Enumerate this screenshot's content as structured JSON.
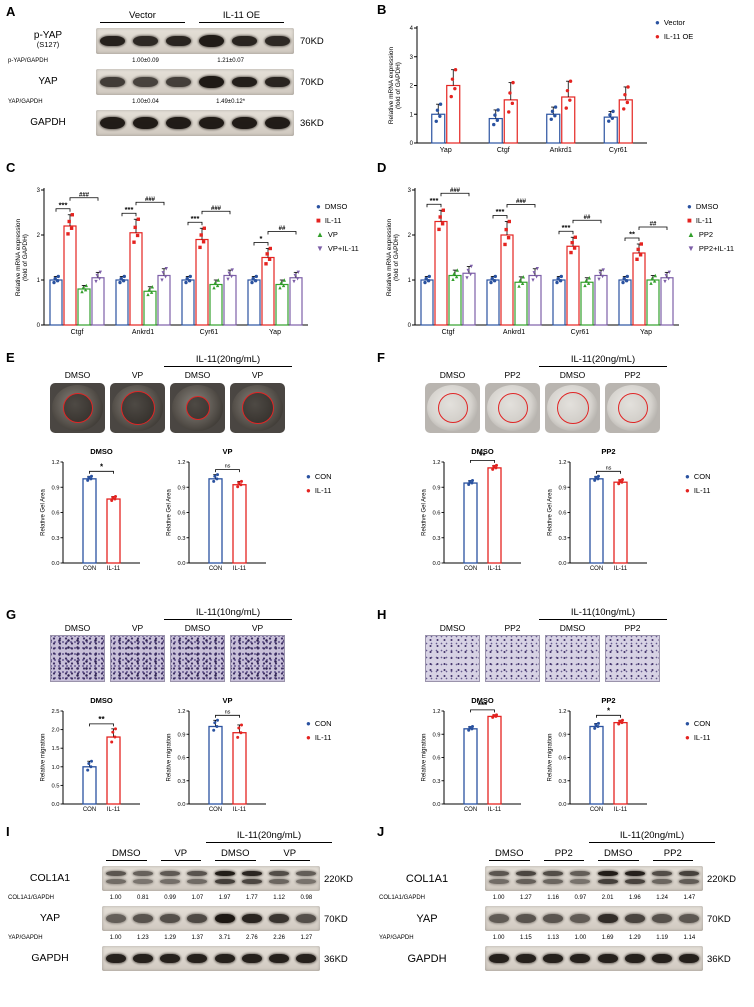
{
  "colors": {
    "blue": "#2a52a0",
    "red": "#e42320",
    "green": "#33a02c",
    "purple": "#7d5fa8",
    "black": "#000000",
    "ring_red": "#e02525"
  },
  "panelA": {
    "letter": "A",
    "groups": [
      "Vector",
      "IL-11 OE"
    ],
    "rows": [
      {
        "label": "p-YAP",
        "sub": "(S127)",
        "kd": "70KD",
        "bands": [
          0.92,
          0.88,
          0.9,
          0.95,
          0.9,
          0.88
        ],
        "quant_label": "p-YAP/GAPDH",
        "quant": [
          "1.00±0.09",
          "1.21±0.07"
        ]
      },
      {
        "label": "YAP",
        "kd": "70KD",
        "bands": [
          0.78,
          0.75,
          0.77,
          0.96,
          0.93,
          0.9
        ],
        "quant_label": "YAP/GAPDH",
        "quant": [
          "1.00±0.04",
          "1.49±0.12*"
        ]
      },
      {
        "label": "GAPDH",
        "kd": "36KD",
        "bands": [
          0.95,
          0.95,
          0.95,
          0.95,
          0.95,
          0.95
        ]
      }
    ]
  },
  "panelB": {
    "letter": "B",
    "chart_data": {
      "type": "bar",
      "ylabel": [
        "Relative mRNA expression",
        "(fold of GAPDH)"
      ],
      "ylim": [
        0,
        4
      ],
      "yticks": [
        0,
        1,
        2,
        3,
        4
      ],
      "grid": false,
      "legend_position": "right",
      "categories": [
        "Yap",
        "Ctgf",
        "Ankrd1",
        "Cyr61"
      ],
      "series": [
        {
          "name": "Vector",
          "color": "blue",
          "marker": "circle",
          "values": [
            1.0,
            0.85,
            1.0,
            0.9
          ],
          "errors": [
            0.35,
            0.3,
            0.25,
            0.2
          ]
        },
        {
          "name": "IL-11 OE",
          "color": "red",
          "marker": "circle",
          "values": [
            2.0,
            1.5,
            1.6,
            1.5
          ],
          "errors": [
            0.55,
            0.6,
            0.55,
            0.45
          ]
        }
      ]
    }
  },
  "panelC": {
    "letter": "C",
    "chart_data": {
      "type": "bar",
      "ylabel": [
        "Relative mRNA expression",
        "(fold of GAPDH)"
      ],
      "ylim": [
        0,
        3
      ],
      "yticks": [
        0,
        1,
        2,
        3
      ],
      "grid": false,
      "legend_position": "right",
      "categories": [
        "Ctgf",
        "Ankrd1",
        "Cyr61",
        "Yap"
      ],
      "series": [
        {
          "name": "DMSO",
          "color": "blue",
          "marker": "circle",
          "values": [
            1.0,
            1.0,
            1.0,
            1.0
          ],
          "errors": [
            0.08,
            0.08,
            0.08,
            0.08
          ]
        },
        {
          "name": "IL-11",
          "color": "red",
          "marker": "square",
          "values": [
            2.2,
            2.05,
            1.9,
            1.5
          ],
          "errors": [
            0.25,
            0.3,
            0.25,
            0.2
          ]
        },
        {
          "name": "VP",
          "color": "green",
          "marker": "triup",
          "values": [
            0.8,
            0.75,
            0.9,
            0.9
          ],
          "errors": [
            0.08,
            0.1,
            0.1,
            0.1
          ]
        },
        {
          "name": "VP+IL-11",
          "color": "purple",
          "marker": "tridown",
          "values": [
            1.05,
            1.1,
            1.1,
            1.05
          ],
          "errors": [
            0.12,
            0.15,
            0.12,
            0.12
          ]
        }
      ],
      "significance": [
        {
          "star": "***",
          "hash": "###"
        },
        {
          "star": "***",
          "hash": "###"
        },
        {
          "star": "***",
          "hash": "###"
        },
        {
          "star": "*",
          "hash": "##"
        }
      ]
    }
  },
  "panelD": {
    "letter": "D",
    "chart_data": {
      "type": "bar",
      "ylabel": [
        "Relative mRNA expression",
        "(fold of GAPDH)"
      ],
      "ylim": [
        0,
        3
      ],
      "yticks": [
        0,
        1,
        2,
        3
      ],
      "grid": false,
      "legend_position": "right",
      "categories": [
        "Ctgf",
        "Ankrd1",
        "Cyr61",
        "Yap"
      ],
      "series": [
        {
          "name": "DMSO",
          "color": "blue",
          "marker": "circle",
          "values": [
            1.0,
            1.0,
            1.0,
            1.0
          ],
          "errors": [
            0.08,
            0.08,
            0.08,
            0.08
          ]
        },
        {
          "name": "IL-11",
          "color": "red",
          "marker": "square",
          "values": [
            2.3,
            2.0,
            1.75,
            1.6
          ],
          "errors": [
            0.25,
            0.3,
            0.2,
            0.2
          ]
        },
        {
          "name": "PP2",
          "color": "green",
          "marker": "triup",
          "values": [
            1.1,
            0.95,
            0.95,
            1.0
          ],
          "errors": [
            0.12,
            0.12,
            0.1,
            0.1
          ]
        },
        {
          "name": "PP2+IL-11",
          "color": "purple",
          "marker": "tridown",
          "values": [
            1.15,
            1.1,
            1.1,
            1.05
          ],
          "errors": [
            0.15,
            0.15,
            0.12,
            0.12
          ]
        }
      ],
      "significance": [
        {
          "star": "***",
          "hash": "###"
        },
        {
          "star": "***",
          "hash": "###"
        },
        {
          "star": "***",
          "hash": "##"
        },
        {
          "star": "**",
          "hash": "##"
        }
      ]
    }
  },
  "panelE": {
    "letter": "E",
    "treatment": "IL-11(20ng/mL)",
    "labels": [
      "DMSO",
      "VP",
      "DMSO",
      "VP"
    ],
    "wells": [
      {
        "ring": 30
      },
      {
        "ring": 34
      },
      {
        "ring": 24
      },
      {
        "ring": 32
      }
    ],
    "legend": [
      {
        "name": "CON",
        "color": "blue",
        "marker": "circle"
      },
      {
        "name": "IL-11",
        "color": "red",
        "marker": "circle"
      }
    ],
    "charts": [
      {
        "type": "bar",
        "title": "DMSO",
        "ylabel": "Relative Gel Area",
        "ylim": [
          0,
          1.2
        ],
        "yticks": [
          0,
          0.3,
          0.6,
          0.9,
          1.2
        ],
        "categories": [
          "CON",
          "IL-11"
        ],
        "colors": [
          "blue",
          "red"
        ],
        "values": [
          1.0,
          0.76
        ],
        "errors": [
          0.03,
          0.03
        ],
        "sig": "*"
      },
      {
        "type": "bar",
        "title": "VP",
        "ylabel": "Relative Gel Area",
        "ylim": [
          0,
          1.2
        ],
        "yticks": [
          0,
          0.3,
          0.6,
          0.9,
          1.2
        ],
        "categories": [
          "CON",
          "IL-11"
        ],
        "colors": [
          "blue",
          "red"
        ],
        "values": [
          1.0,
          0.93
        ],
        "errors": [
          0.05,
          0.04
        ],
        "sig": "ns"
      }
    ]
  },
  "panelF": {
    "letter": "F",
    "treatment": "IL-11(20ng/mL)",
    "labels": [
      "DMSO",
      "PP2",
      "DMSO",
      "PP2"
    ],
    "wells": [
      {
        "ring": 30
      },
      {
        "ring": 30
      },
      {
        "ring": 32
      },
      {
        "ring": 30
      }
    ],
    "legend": [
      {
        "name": "CON",
        "color": "blue",
        "marker": "circle"
      },
      {
        "name": "IL-11",
        "color": "red",
        "marker": "circle"
      }
    ],
    "charts": [
      {
        "type": "bar",
        "title": "DMSO",
        "ylabel": "Relative Gel Area",
        "ylim": [
          0,
          1.2
        ],
        "yticks": [
          0,
          0.3,
          0.6,
          0.9,
          1.2
        ],
        "categories": [
          "CON",
          "IL-11"
        ],
        "colors": [
          "blue",
          "red"
        ],
        "values": [
          0.95,
          1.13
        ],
        "errors": [
          0.03,
          0.03
        ],
        "sig": "**"
      },
      {
        "type": "bar",
        "title": "PP2",
        "ylabel": "Relative Gel Area",
        "ylim": [
          0,
          1.2
        ],
        "yticks": [
          0,
          0.3,
          0.6,
          0.9,
          1.2
        ],
        "categories": [
          "CON",
          "IL-11"
        ],
        "colors": [
          "blue",
          "red"
        ],
        "values": [
          1.0,
          0.96
        ],
        "errors": [
          0.03,
          0.03
        ],
        "sig": "ns"
      }
    ]
  },
  "panelG": {
    "letter": "G",
    "treatment": "IL-11(10ng/mL)",
    "labels": [
      "DMSO",
      "VP",
      "DMSO",
      "VP"
    ],
    "legend": [
      {
        "name": "CON",
        "color": "blue",
        "marker": "circle"
      },
      {
        "name": "IL-11",
        "color": "red",
        "marker": "circle"
      }
    ],
    "charts": [
      {
        "type": "bar",
        "title": "DMSO",
        "ylabel": "Relative migration",
        "ylim": [
          0,
          2.5
        ],
        "yticks": [
          0,
          0.5,
          1,
          1.5,
          2,
          2.5
        ],
        "categories": [
          "CON",
          "IL-11"
        ],
        "colors": [
          "blue",
          "red"
        ],
        "values": [
          1.0,
          1.8
        ],
        "errors": [
          0.15,
          0.22
        ],
        "sig": "**"
      },
      {
        "type": "bar",
        "title": "VP",
        "ylabel": "Relative migration",
        "ylim": [
          0,
          1.2
        ],
        "yticks": [
          0,
          0.3,
          0.6,
          0.9,
          1.2
        ],
        "categories": [
          "CON",
          "IL-11"
        ],
        "colors": [
          "blue",
          "red"
        ],
        "values": [
          1.0,
          0.92
        ],
        "errors": [
          0.08,
          0.1
        ],
        "sig": "ns"
      }
    ]
  },
  "panelH": {
    "letter": "H",
    "treatment": "IL-11(10ng/mL)",
    "labels": [
      "DMSO",
      "PP2",
      "DMSO",
      "PP2"
    ],
    "legend": [
      {
        "name": "CON",
        "color": "blue",
        "marker": "circle"
      },
      {
        "name": "IL-11",
        "color": "red",
        "marker": "circle"
      }
    ],
    "charts": [
      {
        "type": "bar",
        "title": "DMSO",
        "ylabel": "Relative migration",
        "ylim": [
          0,
          1.2
        ],
        "yticks": [
          0,
          0.3,
          0.6,
          0.9,
          1.2
        ],
        "categories": [
          "CON",
          "IL-11"
        ],
        "colors": [
          "blue",
          "red"
        ],
        "values": [
          0.97,
          1.13
        ],
        "errors": [
          0.03,
          0.02
        ],
        "sig": "***"
      },
      {
        "type": "bar",
        "title": "PP2",
        "ylabel": "Relative migration",
        "ylim": [
          0,
          1.2
        ],
        "yticks": [
          0,
          0.3,
          0.6,
          0.9,
          1.2
        ],
        "categories": [
          "CON",
          "IL-11"
        ],
        "colors": [
          "blue",
          "red"
        ],
        "values": [
          1.0,
          1.05
        ],
        "errors": [
          0.04,
          0.03
        ],
        "sig": "*"
      }
    ]
  },
  "panelI": {
    "letter": "I",
    "treatment": "IL-11(20ng/mL)",
    "groups": [
      "DMSO",
      "VP",
      "DMSO",
      "VP"
    ],
    "rows": [
      {
        "label": "COL1A1",
        "kd": "220KD",
        "doublet": true,
        "bands": [
          0.66,
          0.6,
          0.64,
          0.67,
          0.95,
          0.9,
          0.7,
          0.62
        ],
        "quant_label": "COL1A1/GAPDH",
        "quant": [
          "1.00",
          "0.81",
          "0.99",
          "1.07",
          "1.97",
          "1.77",
          "1.12",
          "0.98"
        ]
      },
      {
        "label": "YAP",
        "kd": "70KD",
        "bands": [
          0.6,
          0.66,
          0.68,
          0.71,
          0.97,
          0.9,
          0.82,
          0.68
        ],
        "quant_label": "YAP/GAPDH",
        "quant": [
          "1.00",
          "1.23",
          "1.29",
          "1.37",
          "3.71",
          "2.76",
          "2.26",
          "1.27"
        ]
      },
      {
        "label": "GAPDH",
        "kd": "36KD",
        "bands": [
          0.92,
          0.92,
          0.92,
          0.92,
          0.92,
          0.92,
          0.92,
          0.92
        ]
      }
    ]
  },
  "panelJ": {
    "letter": "J",
    "treatment": "IL-11(20ng/mL)",
    "groups": [
      "DMSO",
      "PP2",
      "DMSO",
      "PP2"
    ],
    "rows": [
      {
        "label": "COL1A1",
        "kd": "220KD",
        "doublet": true,
        "bands": [
          0.66,
          0.74,
          0.7,
          0.62,
          0.95,
          0.93,
          0.7,
          0.76
        ],
        "quant_label": "COL1A1/GAPDH",
        "quant": [
          "1.00",
          "1.27",
          "1.16",
          "0.97",
          "2.01",
          "1.96",
          "1.24",
          "1.47"
        ]
      },
      {
        "label": "YAP",
        "kd": "70KD",
        "bands": [
          0.62,
          0.66,
          0.65,
          0.62,
          0.86,
          0.74,
          0.67,
          0.64
        ],
        "quant_label": "YAP/GAPDH",
        "quant": [
          "1.00",
          "1.15",
          "1.13",
          "1.00",
          "1.69",
          "1.29",
          "1.19",
          "1.14"
        ]
      },
      {
        "label": "GAPDH",
        "kd": "36KD",
        "bands": [
          0.92,
          0.92,
          0.92,
          0.92,
          0.92,
          0.92,
          0.92,
          0.92
        ]
      }
    ]
  }
}
